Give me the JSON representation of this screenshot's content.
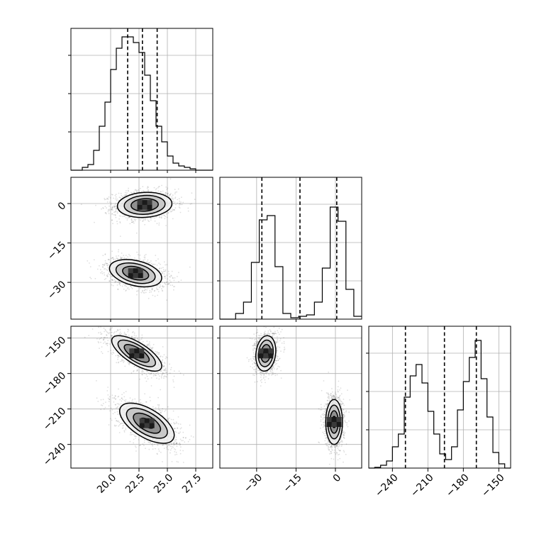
{
  "chart_data": {
    "type": "corner",
    "parameters": [
      {
        "key": "p0",
        "range": [
          16.5,
          29.0
        ],
        "ticks": [
          20.0,
          22.5,
          25.0,
          27.5
        ],
        "tick_labels": [
          "20.0",
          "22.5",
          "25.0",
          "27.5"
        ]
      },
      {
        "key": "p1",
        "range": [
          -44,
          10
        ],
        "ticks": [
          -30,
          -15,
          0
        ],
        "tick_labels": [
          "−30",
          "−15",
          "0"
        ]
      },
      {
        "key": "p2",
        "range": [
          -260,
          -140
        ],
        "ticks": [
          -240,
          -210,
          -180,
          -150
        ],
        "tick_labels": [
          "−240",
          "−210",
          "−180",
          "−150"
        ]
      }
    ],
    "histograms": [
      {
        "param": 0,
        "bin_edges": [
          16.5,
          17.0,
          17.5,
          18.0,
          18.5,
          19.0,
          19.5,
          20.0,
          20.5,
          21.0,
          21.5,
          22.0,
          22.5,
          23.0,
          23.5,
          24.0,
          24.5,
          25.0,
          25.5,
          26.0,
          26.5,
          27.0,
          27.5,
          28.0,
          28.5,
          29.0
        ],
        "counts": [
          0,
          0,
          0.02,
          0.04,
          0.14,
          0.31,
          0.48,
          0.71,
          0.86,
          0.94,
          0.94,
          0.9,
          0.83,
          0.67,
          0.49,
          0.31,
          0.2,
          0.1,
          0.05,
          0.03,
          0.02,
          0.01,
          0,
          0,
          0
        ],
        "quantiles": [
          21.5,
          22.8,
          24.1
        ]
      },
      {
        "param": 1,
        "bin_edges": [
          -44,
          -41,
          -38,
          -35,
          -32,
          -29,
          -26,
          -23,
          -20,
          -17,
          -14,
          -11,
          -8,
          -5,
          -2,
          1,
          4,
          7,
          10
        ],
        "counts": [
          0,
          0,
          0.04,
          0.12,
          0.4,
          0.7,
          0.73,
          0.37,
          0.04,
          0.01,
          0.02,
          0.03,
          0.12,
          0.36,
          0.79,
          0.69,
          0.21,
          0.02
        ],
        "quantiles": [
          -28.0,
          -13.5,
          0.5
        ]
      },
      {
        "param": 2,
        "bin_edges": [
          -260,
          -255,
          -250,
          -245,
          -240,
          -235,
          -230,
          -225,
          -220,
          -215,
          -210,
          -205,
          -200,
          -195,
          -190,
          -185,
          -180,
          -175,
          -170,
          -165,
          -160,
          -155,
          -150,
          -145,
          -140
        ],
        "counts": [
          0,
          0.005,
          0.02,
          0.05,
          0.15,
          0.24,
          0.5,
          0.65,
          0.73,
          0.6,
          0.4,
          0.24,
          0.1,
          0.06,
          0.15,
          0.41,
          0.61,
          0.78,
          0.9,
          0.63,
          0.36,
          0.11,
          0.03,
          0
        ],
        "quantiles": [
          -229,
          -196,
          -169
        ]
      }
    ],
    "joint_2d": [
      {
        "x_param": 0,
        "y_param": 1,
        "modes": [
          {
            "center": [
              23.0,
              -0.5
            ],
            "sx": 1.2,
            "sy": 2.4,
            "rho": 0.1
          },
          {
            "center": [
              22.2,
              -26.5
            ],
            "sx": 1.15,
            "sy": 2.6,
            "rho": -0.35
          }
        ]
      },
      {
        "x_param": 0,
        "y_param": 2,
        "modes": [
          {
            "center": [
              22.3,
              -163
            ],
            "sx": 1.1,
            "sy": 7.5,
            "rho": -0.72
          },
          {
            "center": [
              23.2,
              -222
            ],
            "sx": 1.2,
            "sy": 8.5,
            "rho": -0.6
          }
        ]
      },
      {
        "x_param": 1,
        "y_param": 2,
        "modes": [
          {
            "center": [
              -26.5,
              -163
            ],
            "sx": 1.9,
            "sy": 7.5,
            "rho": 0.15
          },
          {
            "center": [
              -0.5,
              -221
            ],
            "sx": 1.6,
            "sy": 9.5,
            "rho": 0.0
          }
        ]
      }
    ],
    "grid": true
  }
}
